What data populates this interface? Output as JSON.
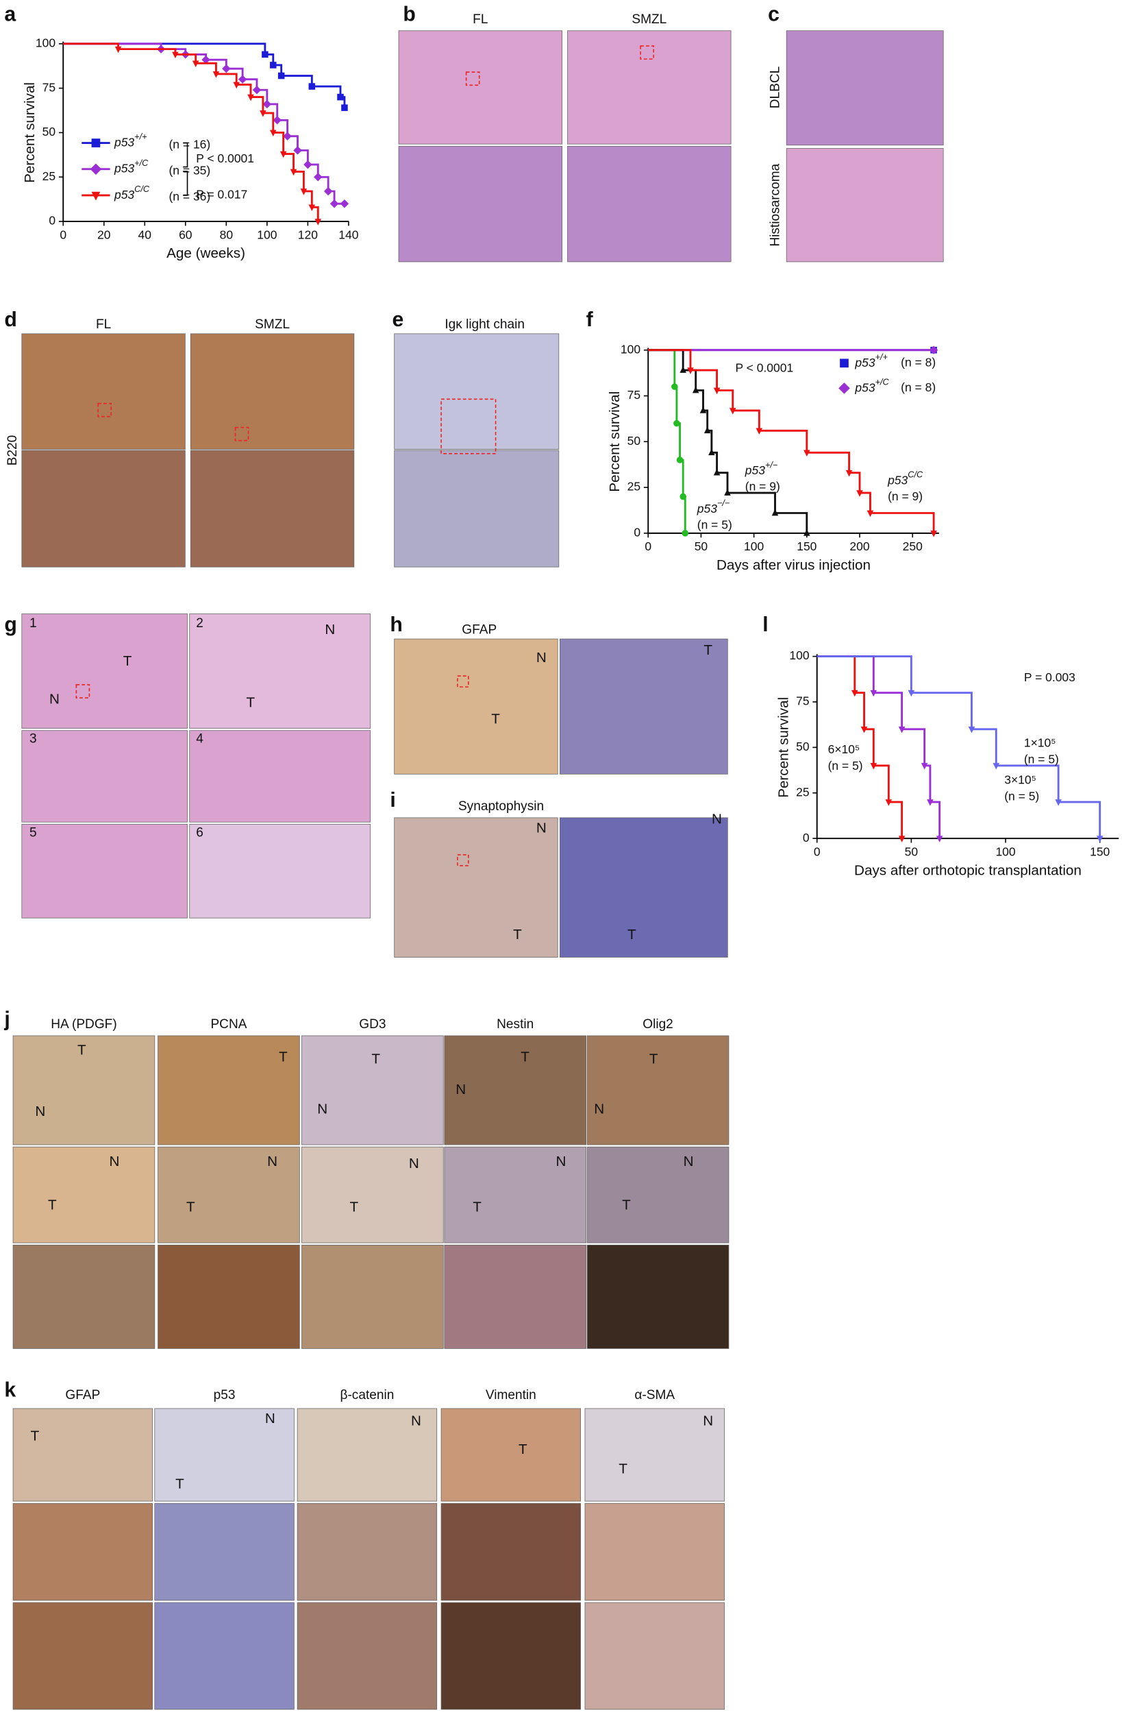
{
  "chart_data": [
    {
      "type": "line",
      "step": true,
      "panel": "a",
      "xlabel": "Age (weeks)",
      "ylabel": "Percent survival",
      "xlim": [
        0,
        140
      ],
      "xticks": [
        0,
        20,
        40,
        60,
        80,
        100,
        120,
        140
      ],
      "ylim": [
        0,
        100
      ],
      "yticks": [
        0,
        25,
        50,
        75,
        100
      ],
      "legend": "center left",
      "annotations": [
        "P < 0.0001",
        "P = 0.017"
      ],
      "series": [
        {
          "name": "p53+/+",
          "n": "(n = 16)",
          "color": "#1c1cd6",
          "marker": "square",
          "x": [
            0,
            99,
            103,
            107,
            122,
            136,
            138
          ],
          "values": [
            100,
            94,
            88,
            82,
            76,
            70,
            64
          ]
        },
        {
          "name": "p53+/C",
          "n": "(n = 35)",
          "color": "#9b2fd6",
          "marker": "diamond",
          "x": [
            0,
            48,
            60,
            70,
            80,
            88,
            95,
            100,
            105,
            110,
            115,
            120,
            125,
            130,
            133,
            138
          ],
          "values": [
            100,
            97,
            94,
            91,
            86,
            80,
            74,
            66,
            57,
            48,
            40,
            32,
            25,
            17,
            10,
            10
          ]
        },
        {
          "name": "p53C/C",
          "n": "(n = 36)",
          "color": "#ee1111",
          "marker": "triangle-down",
          "x": [
            0,
            27,
            55,
            65,
            75,
            85,
            92,
            98,
            103,
            108,
            113,
            118,
            122,
            125
          ],
          "values": [
            100,
            97,
            94,
            89,
            83,
            77,
            70,
            61,
            50,
            38,
            28,
            17,
            8,
            0
          ]
        }
      ]
    },
    {
      "type": "line",
      "step": true,
      "panel": "f",
      "xlabel": "Days after virus injection",
      "ylabel": "Percent survival",
      "xlim": [
        0,
        275
      ],
      "xticks": [
        0,
        50,
        100,
        150,
        200,
        250
      ],
      "ylim": [
        0,
        100
      ],
      "yticks": [
        0,
        25,
        50,
        75,
        100
      ],
      "legend": "upper right",
      "annotations": [
        "P < 0.0001"
      ],
      "series": [
        {
          "name": "p53+/+",
          "n": "(n = 8)",
          "color": "#1c1cd6",
          "marker": "square",
          "x": [
            0,
            270
          ],
          "values": [
            100,
            100
          ]
        },
        {
          "name": "p53+/C",
          "n": "(n = 8)",
          "color": "#9b2fd6",
          "marker": "diamond",
          "x": [
            0,
            270
          ],
          "values": [
            100,
            100
          ]
        },
        {
          "name": "p53−/−",
          "n": "(n = 5)",
          "color": "#22bb22",
          "marker": "circle",
          "x": [
            0,
            25,
            27,
            30,
            33,
            35
          ],
          "values": [
            100,
            80,
            60,
            40,
            20,
            0
          ]
        },
        {
          "name": "p53+/−",
          "n": "(n = 9)",
          "color": "#111111",
          "marker": "triangle-up",
          "x": [
            0,
            33,
            45,
            52,
            56,
            60,
            65,
            75,
            120,
            150
          ],
          "values": [
            100,
            89,
            78,
            67,
            56,
            44,
            33,
            22,
            11,
            0
          ]
        },
        {
          "name": "p53C/C",
          "n": "(n = 9)",
          "color": "#ee1111",
          "marker": "triangle-down",
          "x": [
            0,
            40,
            65,
            80,
            105,
            150,
            190,
            200,
            210,
            270
          ],
          "values": [
            100,
            89,
            78,
            67,
            56,
            44,
            33,
            22,
            11,
            0
          ]
        }
      ]
    },
    {
      "type": "line",
      "step": true,
      "panel": "l",
      "xlabel": "Days after orthotopic transplantation",
      "ylabel": "Percent survival",
      "xlim": [
        0,
        160
      ],
      "xticks": [
        0,
        50,
        100,
        150
      ],
      "ylim": [
        0,
        100
      ],
      "yticks": [
        0,
        25,
        50,
        75,
        100
      ],
      "annotations": [
        "P = 0.003"
      ],
      "series": [
        {
          "name": "6×10⁵",
          "n": "(n = 5)",
          "color": "#ee1111",
          "marker": "triangle-down",
          "x": [
            0,
            20,
            25,
            30,
            38,
            45
          ],
          "values": [
            100,
            80,
            60,
            40,
            20,
            0
          ]
        },
        {
          "name": "3×10⁵",
          "n": "(n = 5)",
          "color": "#9b2fd6",
          "marker": "triangle-down",
          "x": [
            0,
            30,
            45,
            57,
            60,
            65
          ],
          "values": [
            100,
            80,
            60,
            40,
            20,
            0
          ]
        },
        {
          "name": "1×10⁵",
          "n": "(n = 5)",
          "color": "#6666ee",
          "marker": "triangle-down",
          "x": [
            0,
            50,
            82,
            95,
            128,
            150
          ],
          "values": [
            100,
            80,
            60,
            40,
            20,
            0
          ]
        }
      ]
    }
  ],
  "figure": {
    "b": {
      "letter": "b",
      "columns": [
        "FL",
        "SMZL"
      ]
    },
    "c": {
      "letter": "c",
      "rows": [
        "DLBCL",
        "Histiosarcoma"
      ]
    },
    "d": {
      "letter": "d",
      "columns": [
        "FL",
        "SMZL"
      ],
      "row": "B220"
    },
    "e": {
      "letter": "e",
      "title": "Igκ light chain"
    },
    "g": {
      "letter": "g",
      "numbers": [
        "1",
        "2",
        "3",
        "4",
        "5",
        "6"
      ],
      "labels": [
        "T",
        "N",
        "N",
        "T"
      ]
    },
    "h": {
      "letter": "h",
      "title": "GFAP",
      "labels": [
        "N",
        "T",
        "T"
      ]
    },
    "i": {
      "letter": "i",
      "title": "Synaptophysin",
      "labels": [
        "N",
        "T",
        "N",
        "T"
      ]
    },
    "j": {
      "letter": "j",
      "columns": [
        "HA (PDGF)",
        "PCNA",
        "GD3",
        "Nestin",
        "Olig2"
      ],
      "labels": [
        "T",
        "N",
        "T",
        "T",
        "N",
        "T",
        "N",
        "T",
        "N",
        "N",
        "T",
        "N",
        "T",
        "N",
        "T",
        "N",
        "T",
        "N",
        "T"
      ]
    },
    "k": {
      "letter": "k",
      "columns": [
        "GFAP",
        "p53",
        "β-catenin",
        "Vimentin",
        "α-SMA"
      ],
      "labels": [
        "T",
        "N",
        "T",
        "N",
        "T",
        "N",
        "T"
      ]
    }
  }
}
